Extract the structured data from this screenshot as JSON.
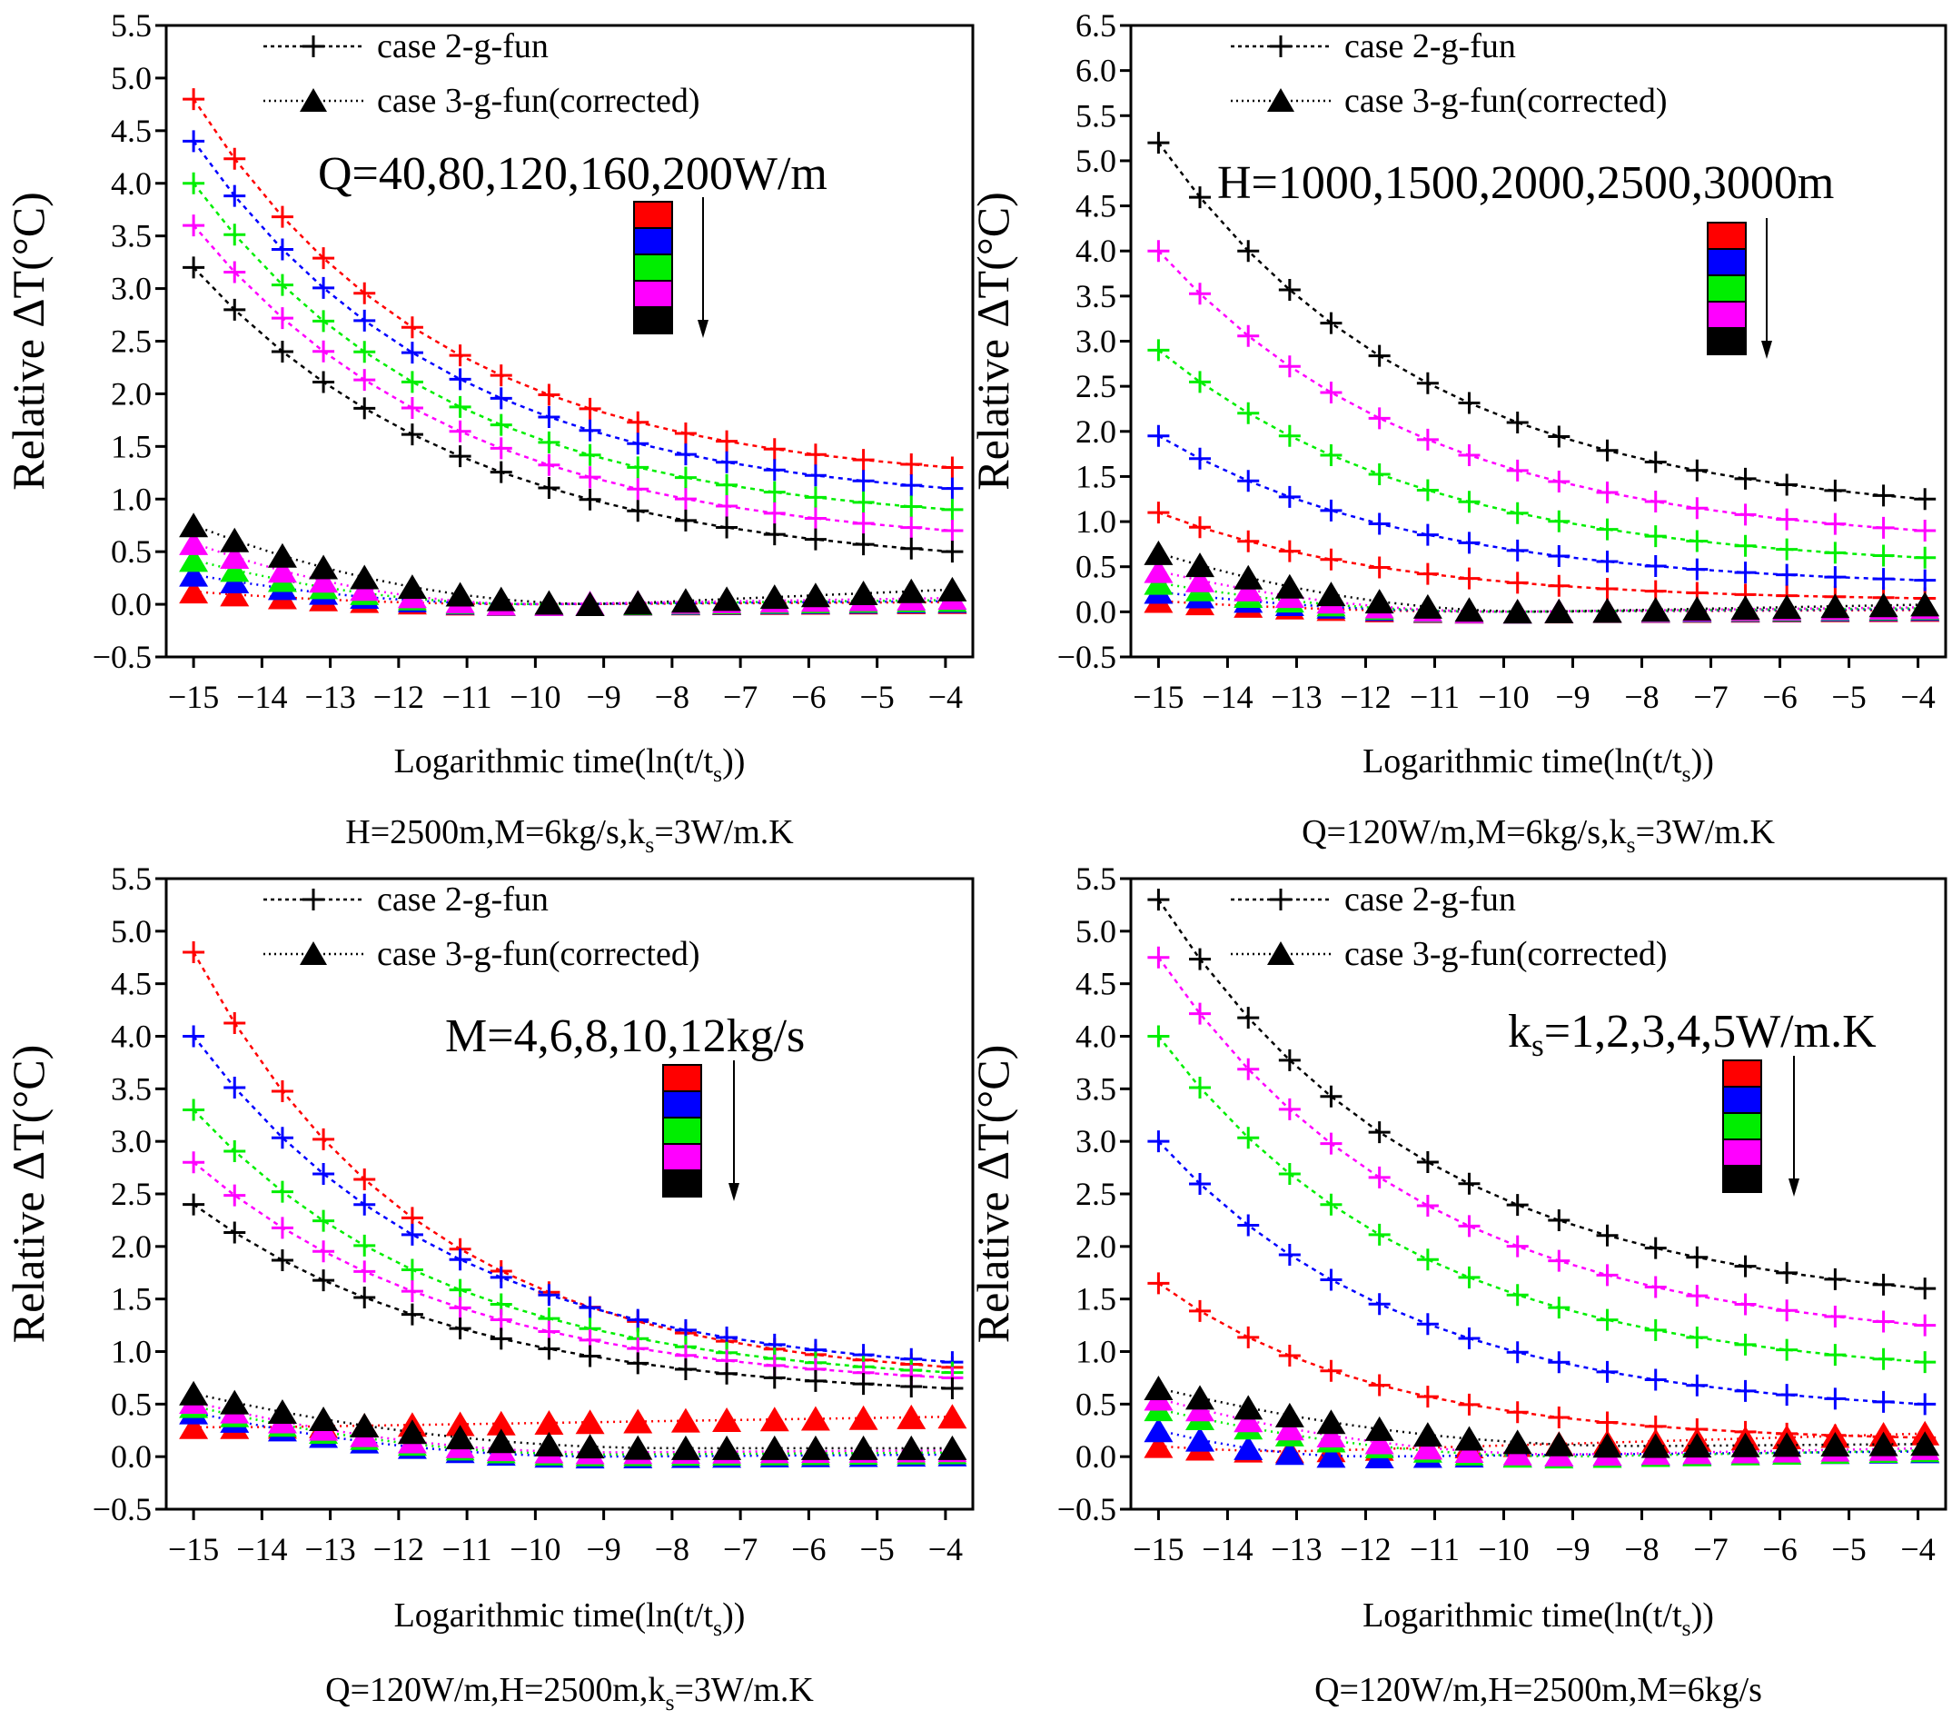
{
  "chart_data": [
    {
      "type": "line",
      "panel": "top-left",
      "ylabel": "Relative ΔT(°C)",
      "xlabel": "Logarithmic time(ln(t/t",
      "xlabel_sub": "s",
      "xlabel_end": "))",
      "caption": {
        "pre": "H=2500m,M=6kg/s,k",
        "sub": "s",
        "post": "=3W/m.K"
      },
      "annotation": {
        "pre": "Q=40,80,120,160,200W/m",
        "sub": "",
        "post": ""
      },
      "ylim": [
        -0.5,
        5.5
      ],
      "yticks": [
        "−0.5",
        "0.0",
        "0.5",
        "1.0",
        "1.5",
        "2.0",
        "2.5",
        "3.0",
        "3.5",
        "4.0",
        "4.5",
        "5.0",
        "5.5"
      ],
      "xlim": [
        -15.4,
        -3.6
      ],
      "xticks": [
        "−15",
        "−14",
        "−13",
        "−12",
        "−11",
        "−10",
        "−9",
        "−8",
        "−7",
        "−6",
        "−5",
        "−4"
      ],
      "legend": {
        "line": "case 2-g-fun",
        "triangle": "case 3-g-fun(corrected)"
      },
      "series": [
        {
          "name": "red",
          "color": "#ff0000",
          "start": 4.8,
          "end": 1.3,
          "k": 0.28,
          "tri_start": 0.12,
          "tri_min": 0.0,
          "tri_end": 0.02,
          "tri_tmin": -10
        },
        {
          "name": "blue",
          "color": "#0000ff",
          "start": 4.4,
          "end": 1.1,
          "k": 0.27,
          "tri_start": 0.28,
          "tri_min": 0.0,
          "tri_end": 0.03,
          "tri_tmin": -10
        },
        {
          "name": "green",
          "color": "#00ee00",
          "start": 4.0,
          "end": 0.9,
          "k": 0.27,
          "tri_start": 0.42,
          "tri_min": 0.0,
          "tri_end": 0.04,
          "tri_tmin": -10
        },
        {
          "name": "magenta",
          "color": "#ff00ff",
          "start": 3.6,
          "end": 0.7,
          "k": 0.26,
          "tri_start": 0.58,
          "tri_min": 0.0,
          "tri_end": 0.06,
          "tri_tmin": -10
        },
        {
          "name": "black",
          "color": "#000000",
          "start": 3.2,
          "end": 0.5,
          "k": 0.25,
          "tri_start": 0.75,
          "tri_min": 0.0,
          "tri_end": 0.14,
          "tri_tmin": -9
        }
      ]
    },
    {
      "type": "line",
      "panel": "top-right",
      "ylabel": "Relative ΔT(°C)",
      "xlabel": "Logarithmic time(ln(t/t",
      "xlabel_sub": "s",
      "xlabel_end": "))",
      "caption": {
        "pre": "Q=120W/m,M=6kg/s,k",
        "sub": "s",
        "post": "=3W/m.K"
      },
      "annotation": {
        "pre": "H=1000,1500,2000,2500,3000m",
        "sub": "",
        "post": ""
      },
      "ylim": [
        -0.5,
        6.5
      ],
      "yticks": [
        "−0.5",
        "0.0",
        "0.5",
        "1.0",
        "1.5",
        "2.0",
        "2.5",
        "3.0",
        "3.5",
        "4.0",
        "4.5",
        "5.0",
        "5.5",
        "6.0",
        "6.5"
      ],
      "xlim": [
        -15.4,
        -3.6
      ],
      "xticks": [
        "−15",
        "−14",
        "−13",
        "−12",
        "−11",
        "−10",
        "−9",
        "−8",
        "−7",
        "−6",
        "−5",
        "−4"
      ],
      "legend": {
        "line": "case 2-g-fun",
        "triangle": "case 3-g-fun(corrected)"
      },
      "series": [
        {
          "name": "red",
          "color": "#ff0000",
          "start": 1.1,
          "end": 0.15,
          "k": 0.3,
          "tri_start": 0.12,
          "tri_min": 0.0,
          "tri_end": 0.02,
          "tri_tmin": -10
        },
        {
          "name": "blue",
          "color": "#0000ff",
          "start": 1.95,
          "end": 0.35,
          "k": 0.27,
          "tri_start": 0.22,
          "tri_min": 0.0,
          "tri_end": 0.03,
          "tri_tmin": -10
        },
        {
          "name": "green",
          "color": "#00ee00",
          "start": 2.9,
          "end": 0.6,
          "k": 0.26,
          "tri_start": 0.32,
          "tri_min": 0.0,
          "tri_end": 0.04,
          "tri_tmin": -10
        },
        {
          "name": "magenta",
          "color": "#ff00ff",
          "start": 4.0,
          "end": 0.9,
          "k": 0.26,
          "tri_start": 0.45,
          "tri_min": 0.0,
          "tri_end": 0.05,
          "tri_tmin": -10
        },
        {
          "name": "black",
          "color": "#000000",
          "start": 5.2,
          "end": 1.25,
          "k": 0.26,
          "tri_start": 0.65,
          "tri_min": 0.0,
          "tri_end": 0.08,
          "tri_tmin": -9.5
        }
      ]
    },
    {
      "type": "line",
      "panel": "bottom-left",
      "ylabel": "Relative ΔT(°C)",
      "xlabel": "Logarithmic time(ln(t/t",
      "xlabel_sub": "s",
      "xlabel_end": "))",
      "caption": {
        "pre": "Q=120W/m,H=2500m,k",
        "sub": "s",
        "post": "=3W/m.K"
      },
      "annotation": {
        "pre": "M=4,6,8,10,12kg/s",
        "sub": "",
        "post": ""
      },
      "ylim": [
        -0.5,
        5.5
      ],
      "yticks": [
        "−0.5",
        "0.0",
        "0.5",
        "1.0",
        "1.5",
        "2.0",
        "2.5",
        "3.0",
        "3.5",
        "4.0",
        "4.5",
        "5.0",
        "5.5"
      ],
      "xlim": [
        -15.4,
        -3.6
      ],
      "xticks": [
        "−15",
        "−14",
        "−13",
        "−12",
        "−11",
        "−10",
        "−9",
        "−8",
        "−7",
        "−6",
        "−5",
        "−4"
      ],
      "legend": {
        "line": "case 2-g-fun",
        "triangle": "case 3-g-fun(corrected)"
      },
      "series": [
        {
          "name": "red",
          "color": "#ff0000",
          "start": 4.8,
          "end": 0.85,
          "k": 0.3,
          "tri_start": 0.28,
          "tri_min": 0.28,
          "tri_end": 0.38,
          "tri_tmin": -14
        },
        {
          "name": "blue",
          "color": "#0000ff",
          "start": 4.0,
          "end": 0.9,
          "k": 0.27,
          "tri_start": 0.42,
          "tri_min": 0.0,
          "tri_end": 0.02,
          "tri_tmin": -9
        },
        {
          "name": "green",
          "color": "#00ee00",
          "start": 3.3,
          "end": 0.8,
          "k": 0.27,
          "tri_start": 0.48,
          "tri_min": 0.02,
          "tri_end": 0.04,
          "tri_tmin": -9
        },
        {
          "name": "magenta",
          "color": "#ff00ff",
          "start": 2.8,
          "end": 0.75,
          "k": 0.26,
          "tri_start": 0.52,
          "tri_min": 0.04,
          "tri_end": 0.06,
          "tri_tmin": -9
        },
        {
          "name": "black",
          "color": "#000000",
          "start": 2.4,
          "end": 0.65,
          "k": 0.26,
          "tri_start": 0.6,
          "tri_min": 0.08,
          "tri_end": 0.08,
          "tri_tmin": -8
        }
      ]
    },
    {
      "type": "line",
      "panel": "bottom-right",
      "ylabel": "Relative ΔT(°C)",
      "xlabel": "Logarithmic time(ln(t/t",
      "xlabel_sub": "s",
      "xlabel_end": "))",
      "caption": {
        "pre": "Q=120W/m,H=2500m,M=6kg/s",
        "sub": "",
        "post": ""
      },
      "annotation": {
        "pre": "k",
        "sub": "s",
        "post": "=1,2,3,4,5W/m.K"
      },
      "ylim": [
        -0.5,
        5.5
      ],
      "yticks": [
        "−0.5",
        "0.0",
        "0.5",
        "1.0",
        "1.5",
        "2.0",
        "2.5",
        "3.0",
        "3.5",
        "4.0",
        "4.5",
        "5.0",
        "5.5"
      ],
      "xlim": [
        -15.4,
        -3.6
      ],
      "xticks": [
        "−15",
        "−14",
        "−13",
        "−12",
        "−11",
        "−10",
        "−9",
        "−8",
        "−7",
        "−6",
        "−5",
        "−4"
      ],
      "legend": {
        "line": "case 2-g-fun",
        "triangle": "case 3-g-fun(corrected)"
      },
      "series": [
        {
          "name": "red",
          "color": "#ff0000",
          "start": 1.65,
          "end": 0.18,
          "k": 0.32,
          "tri_start": 0.1,
          "tri_min": 0.05,
          "tri_end": 0.22,
          "tri_tmin": -13
        },
        {
          "name": "blue",
          "color": "#0000ff",
          "start": 3.0,
          "end": 0.5,
          "k": 0.28,
          "tri_start": 0.25,
          "tri_min": 0.0,
          "tri_end": 0.05,
          "tri_tmin": -12
        },
        {
          "name": "green",
          "color": "#00ee00",
          "start": 4.0,
          "end": 0.9,
          "k": 0.27,
          "tri_start": 0.45,
          "tri_min": 0.0,
          "tri_end": 0.06,
          "tri_tmin": -9
        },
        {
          "name": "magenta",
          "color": "#ff00ff",
          "start": 4.75,
          "end": 1.25,
          "k": 0.26,
          "tri_start": 0.55,
          "tri_min": 0.02,
          "tri_end": 0.08,
          "tri_tmin": -9
        },
        {
          "name": "black",
          "color": "#000000",
          "start": 5.3,
          "end": 1.6,
          "k": 0.26,
          "tri_start": 0.65,
          "tri_min": 0.1,
          "tri_end": 0.12,
          "tri_tmin": -8
        }
      ]
    }
  ],
  "x_points": [
    -15,
    -14.4,
    -13.7,
    -13.1,
    -12.5,
    -11.8,
    -11.1,
    -10.5,
    -9.8,
    -9.2,
    -8.5,
    -7.8,
    -7.2,
    -6.5,
    -5.9,
    -5.2,
    -4.5,
    -3.9
  ]
}
